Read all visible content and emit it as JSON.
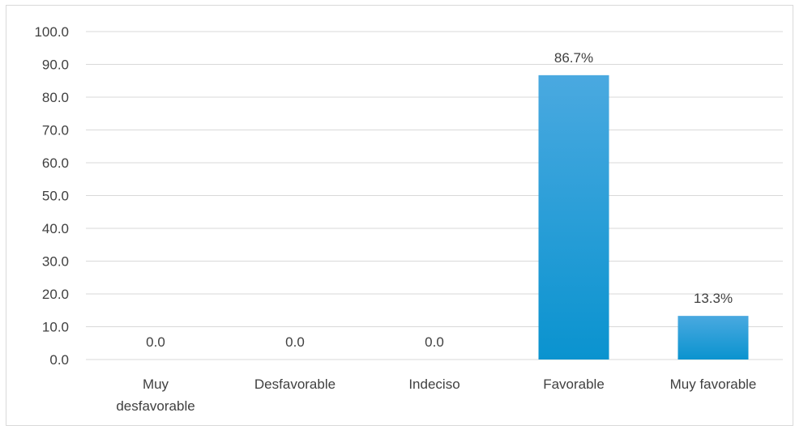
{
  "chart_data": {
    "type": "bar",
    "categories": [
      [
        "Muy",
        "desfavorable"
      ],
      [
        "Desfavorable"
      ],
      [
        "Indeciso"
      ],
      [
        "Favorable"
      ],
      [
        "Muy favorable"
      ]
    ],
    "values": [
      0.0,
      0.0,
      0.0,
      86.7,
      13.3
    ],
    "data_labels": [
      "0.0",
      "0.0",
      "0.0",
      "86.7%",
      "13.3%"
    ],
    "yticks": [
      "0.0",
      "10.0",
      "20.0",
      "30.0",
      "40.0",
      "50.0",
      "60.0",
      "70.0",
      "80.0",
      "90.0",
      "100.0"
    ],
    "ylim": [
      0,
      100
    ],
    "grid": true,
    "legend": "none",
    "colors": {
      "bar_top": "#4aa9e0",
      "bar_bottom": "#0a93cf",
      "grid": "#d9d9d9",
      "text": "#404040"
    }
  }
}
